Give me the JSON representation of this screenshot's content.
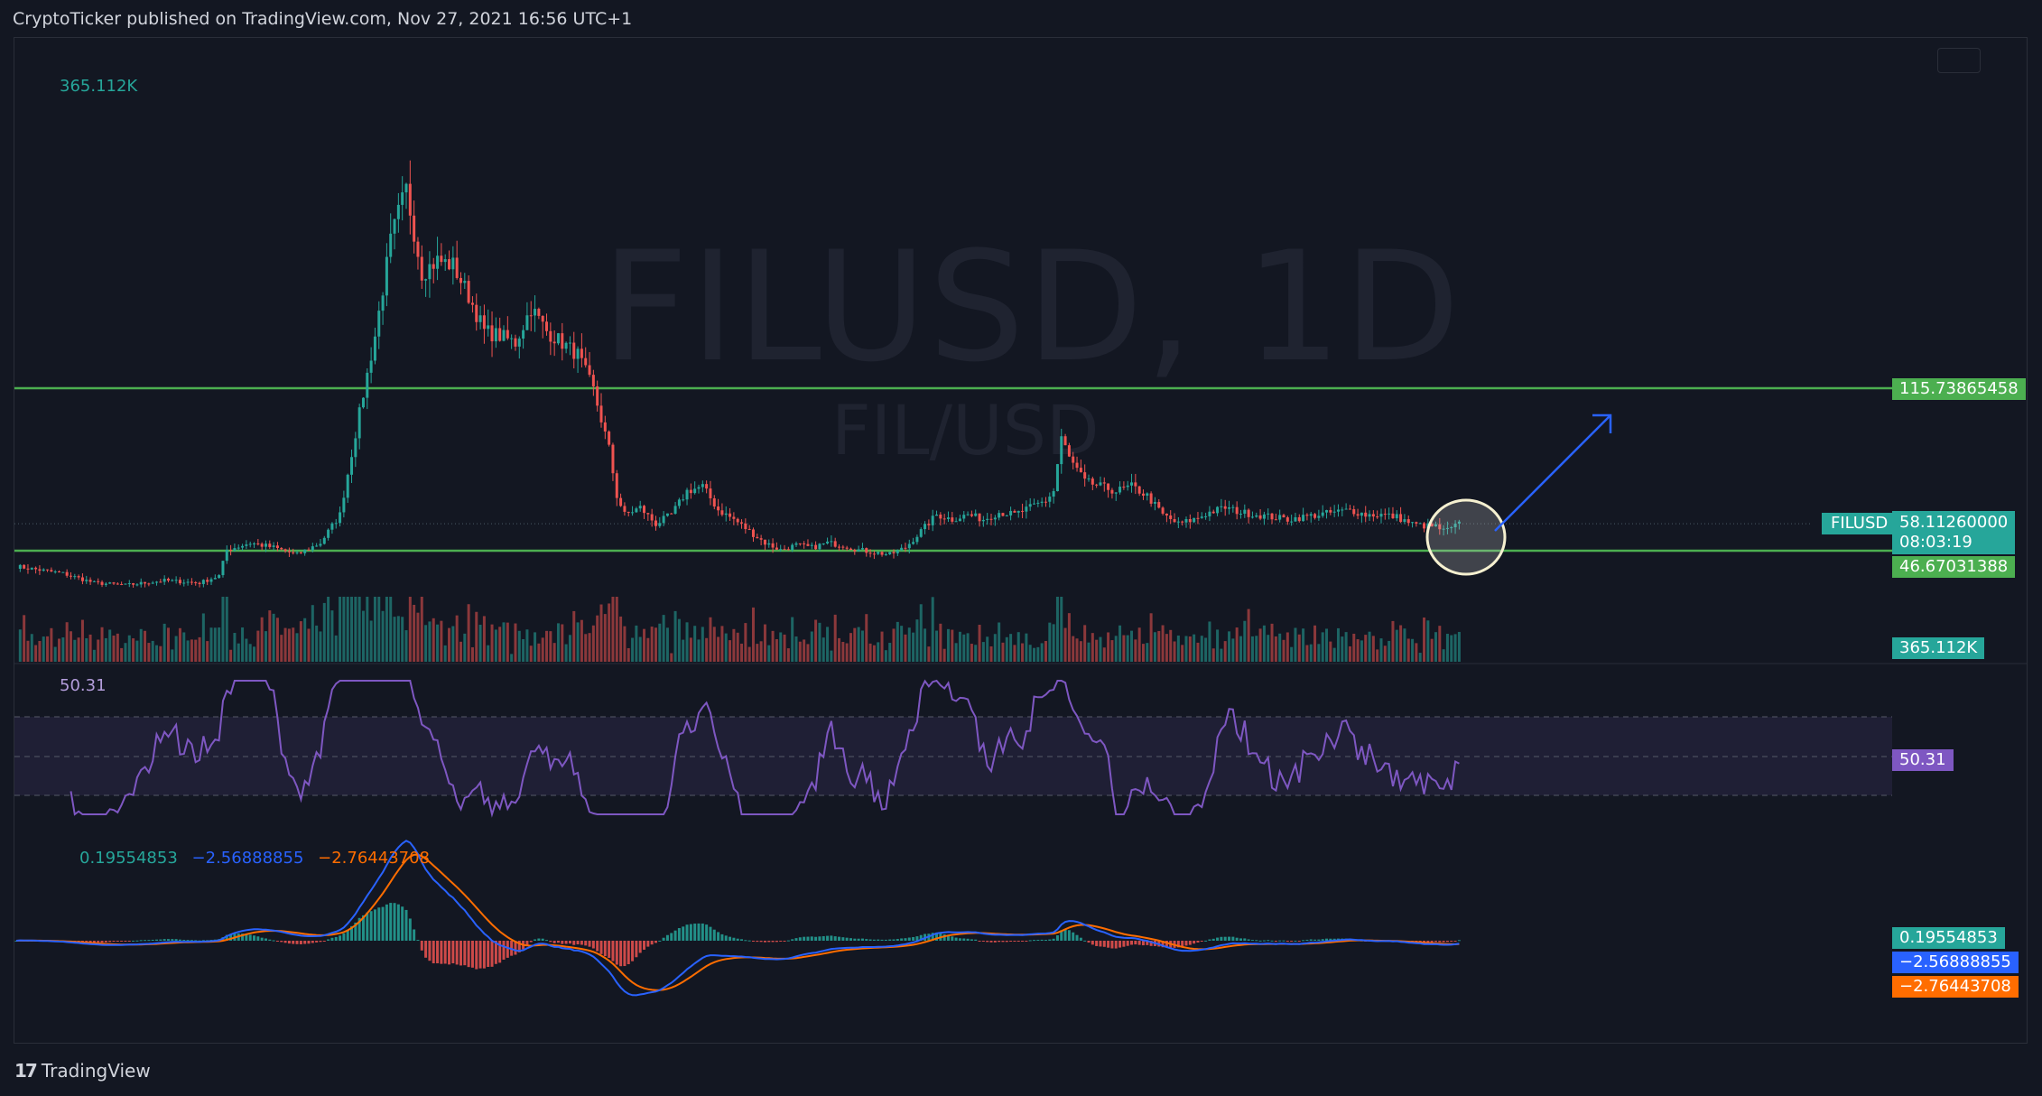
{
  "header": {
    "publish_line": "CryptoTicker published on TradingView.com, Nov 27, 2021 16:56 UTC+1"
  },
  "watermark": {
    "symbol_interval": "FILUSD, 1D",
    "pair": "FIL/USD"
  },
  "footer": {
    "logo_glyph": "17",
    "brand": "TradingView"
  },
  "colors": {
    "background": "#131722",
    "up": "#26a69a",
    "down": "#ef5350",
    "level_line": "#4caf50",
    "rsi": "#7e57c2",
    "macd_line": "#2962ff",
    "signal_line": "#ff6d00",
    "arrow": "#2962ff",
    "circle": "#f5f0d0"
  },
  "chart_data": {
    "type": "candlestick",
    "symbol": "FILUSD",
    "panes": {
      "price": {
        "levels": [
          {
            "value": 115.73865458,
            "label": "115.73865458"
          },
          {
            "value": 46.67031388,
            "label": "46.67031388"
          }
        ],
        "last_price": {
          "label": "FILUSD",
          "value": "58.11260000",
          "countdown": "08:03:19"
        },
        "path": [
          [
            0,
            40
          ],
          [
            12,
            37
          ],
          [
            20,
            33
          ],
          [
            28,
            32
          ],
          [
            38,
            34
          ],
          [
            47,
            33
          ],
          [
            52,
            36
          ],
          [
            54,
            47
          ],
          [
            60,
            50
          ],
          [
            66,
            48
          ],
          [
            72,
            45
          ],
          [
            78,
            50
          ],
          [
            83,
            62
          ],
          [
            86,
            88
          ],
          [
            88,
            105
          ],
          [
            92,
            138
          ],
          [
            96,
            178
          ],
          [
            98,
            190
          ],
          [
            100,
            200
          ],
          [
            104,
            165
          ],
          [
            108,
            170
          ],
          [
            112,
            168
          ],
          [
            116,
            155
          ],
          [
            120,
            140
          ],
          [
            124,
            138
          ],
          [
            128,
            135
          ],
          [
            132,
            150
          ],
          [
            136,
            140
          ],
          [
            140,
            135
          ],
          [
            144,
            130
          ],
          [
            148,
            115
          ],
          [
            152,
            90
          ],
          [
            154,
            70
          ],
          [
            156,
            62
          ],
          [
            160,
            65
          ],
          [
            164,
            58
          ],
          [
            168,
            62
          ],
          [
            172,
            72
          ],
          [
            176,
            74
          ],
          [
            180,
            64
          ],
          [
            184,
            60
          ],
          [
            188,
            55
          ],
          [
            192,
            50
          ],
          [
            196,
            47
          ],
          [
            200,
            49
          ],
          [
            204,
            48
          ],
          [
            208,
            50
          ],
          [
            212,
            49
          ],
          [
            216,
            47
          ],
          [
            220,
            46
          ],
          [
            224,
            45
          ],
          [
            228,
            48
          ],
          [
            232,
            55
          ],
          [
            236,
            62
          ],
          [
            240,
            60
          ],
          [
            244,
            62
          ],
          [
            248,
            60
          ],
          [
            252,
            63
          ],
          [
            256,
            62
          ],
          [
            260,
            65
          ],
          [
            264,
            68
          ],
          [
            266,
            72
          ],
          [
            268,
            95
          ],
          [
            270,
            86
          ],
          [
            274,
            76
          ],
          [
            278,
            74
          ],
          [
            282,
            72
          ],
          [
            286,
            74
          ],
          [
            290,
            70
          ],
          [
            294,
            62
          ],
          [
            298,
            58
          ],
          [
            302,
            60
          ],
          [
            306,
            63
          ],
          [
            310,
            65
          ],
          [
            314,
            63
          ],
          [
            318,
            62
          ],
          [
            322,
            61
          ],
          [
            326,
            60
          ],
          [
            330,
            61
          ],
          [
            334,
            62
          ],
          [
            338,
            63
          ],
          [
            342,
            64
          ],
          [
            346,
            62
          ],
          [
            350,
            62
          ],
          [
            354,
            61
          ],
          [
            358,
            58
          ],
          [
            362,
            57
          ],
          [
            364,
            57
          ],
          [
            366,
            55
          ],
          [
            368,
            56
          ],
          [
            370,
            58
          ]
        ]
      },
      "volume": {
        "legend": "365.112K",
        "last": "365.112K"
      },
      "rsi": {
        "legend": "50.31",
        "last": "50.31",
        "upper_band": 70,
        "middle_band": 50,
        "lower_band": 30
      },
      "macd": {
        "legend": [
          "0.19554853",
          "−2.56888855",
          "−2.76443708"
        ],
        "labels": {
          "histogram": "0.19554853",
          "macd": "−2.56888855",
          "signal": "−2.76443708"
        }
      }
    }
  }
}
